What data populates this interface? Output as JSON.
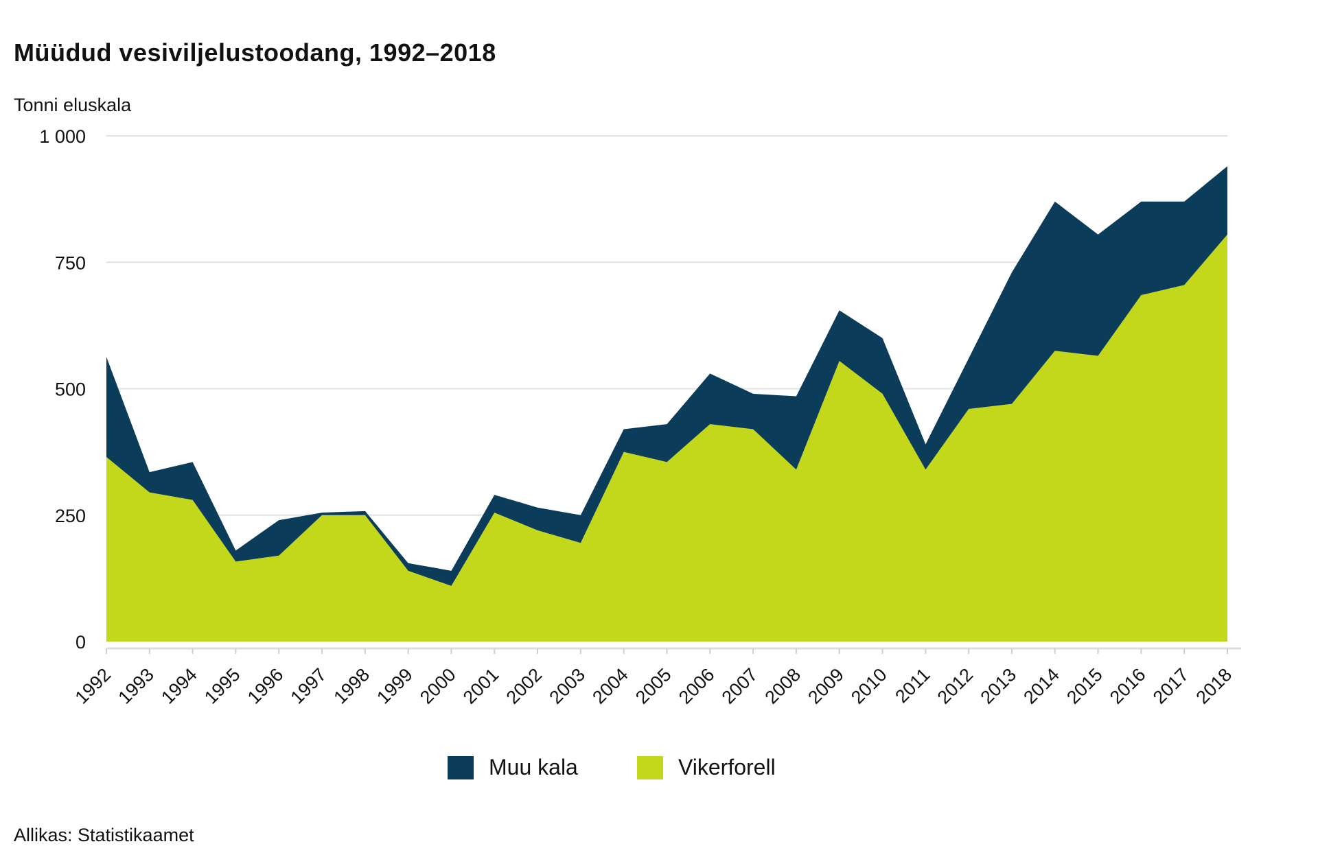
{
  "chart_data": {
    "type": "area",
    "stacked": true,
    "title": "Müüdud vesiviljelustoodang, 1992–2018",
    "ylabel": "Tonni eluskala",
    "xlabel": "",
    "ylim": [
      0,
      1000
    ],
    "yticks": [
      0,
      250,
      500,
      750,
      1000
    ],
    "ytick_labels": [
      "0",
      "250",
      "500",
      "750",
      "1 000"
    ],
    "grid": true,
    "legend_position": "bottom",
    "categories": [
      "1992",
      "1993",
      "1994",
      "1995",
      "1996",
      "1997",
      "1998",
      "1999",
      "2000",
      "2001",
      "2002",
      "2003",
      "2004",
      "2005",
      "2006",
      "2007",
      "2008",
      "2009",
      "2010",
      "2011",
      "2012",
      "2013",
      "2014",
      "2015",
      "2016",
      "2017",
      "2018"
    ],
    "series": [
      {
        "name": "Vikerforell",
        "color": "#c3d81a",
        "values": [
          365,
          295,
          280,
          158,
          170,
          250,
          250,
          140,
          110,
          255,
          220,
          195,
          375,
          355,
          430,
          420,
          340,
          555,
          490,
          340,
          460,
          470,
          575,
          565,
          685,
          705,
          805
        ]
      },
      {
        "name": "Muu kala",
        "color": "#0b3d5a",
        "values": [
          198,
          40,
          75,
          22,
          70,
          5,
          8,
          15,
          30,
          35,
          45,
          55,
          45,
          75,
          100,
          70,
          145,
          100,
          110,
          50,
          100,
          260,
          295,
          240,
          185,
          165,
          135
        ]
      }
    ],
    "source": "Allikas: Statistikaamet"
  }
}
